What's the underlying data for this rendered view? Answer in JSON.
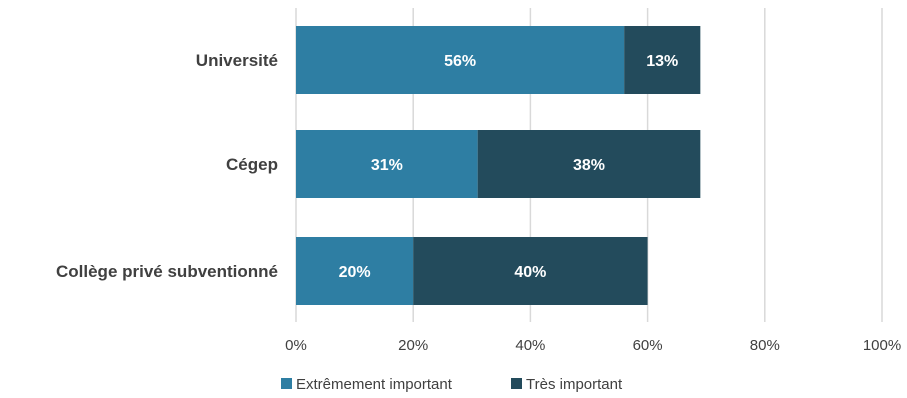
{
  "chart_data": {
    "type": "bar",
    "orientation": "horizontal",
    "stacked": true,
    "categories": [
      "Université",
      "Cégep",
      "Collège privé subventionné"
    ],
    "series": [
      {
        "name": "Extrêmement important",
        "values": [
          56,
          31,
          20
        ],
        "labels": [
          "56%",
          "31%",
          "20%"
        ],
        "color": "#2e7ea3"
      },
      {
        "name": "Très important",
        "values": [
          13,
          38,
          40
        ],
        "labels": [
          "13%",
          "38%",
          "40%"
        ],
        "color": "#234b5c"
      }
    ],
    "xlim": [
      0,
      100
    ],
    "x_ticks": [
      0,
      20,
      40,
      60,
      80,
      100
    ],
    "x_tick_labels": [
      "0%",
      "20%",
      "40%",
      "60%",
      "80%",
      "100%"
    ],
    "grid": "vertical",
    "legend": "bottom"
  }
}
